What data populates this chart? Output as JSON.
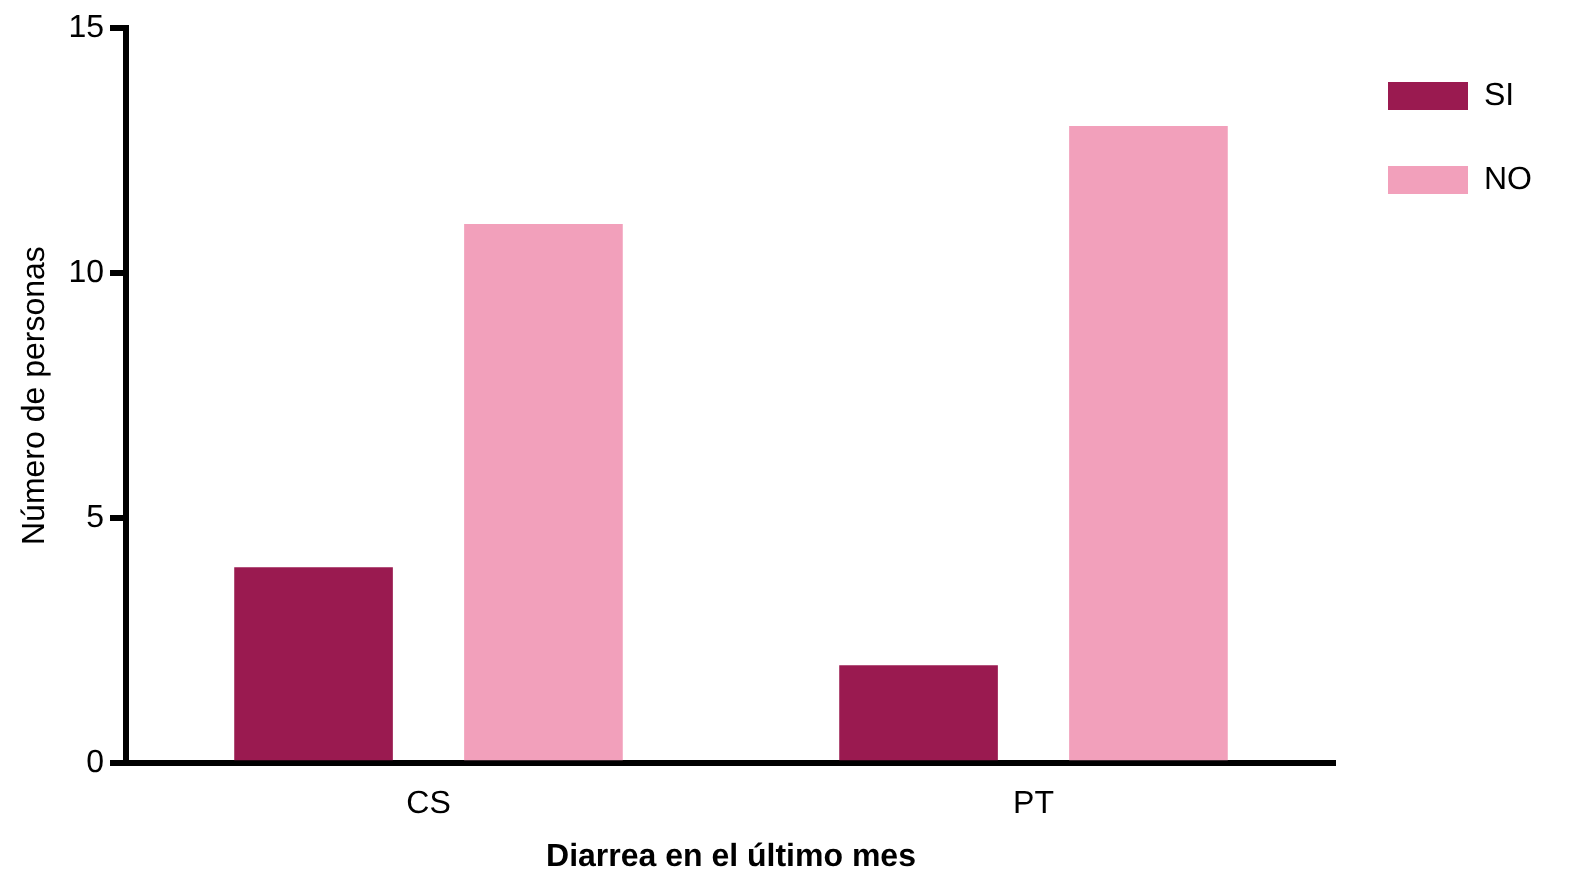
{
  "chart_data": {
    "type": "bar",
    "xlabel": "Diarrea en el último mes",
    "ylabel": "Número de personas",
    "categories": [
      "CS",
      "PT"
    ],
    "series": [
      {
        "name": "SI",
        "color": "#9a1a50",
        "values": [
          4,
          2
        ]
      },
      {
        "name": "NO",
        "color": "#f2a0bb",
        "values": [
          11,
          13
        ]
      }
    ],
    "ylim": [
      0,
      15
    ],
    "yticks": [
      0,
      5,
      10,
      15
    ],
    "grid": false,
    "legend": "top right"
  }
}
